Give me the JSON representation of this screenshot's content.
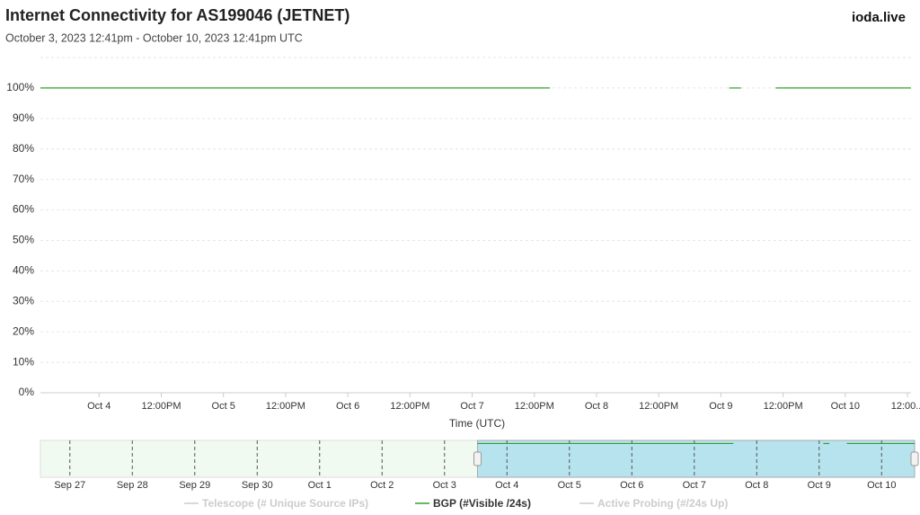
{
  "chart_data": {
    "type": "line",
    "title": "Internet Connectivity for AS199046 (JETNET)",
    "subtitle": "October 3, 2023 12:41pm - October 10, 2023 12:41pm UTC",
    "brand": "ioda.live",
    "x_label": "Time (UTC)",
    "xlim": [
      "2023-10-03T12:41",
      "2023-10-10T12:41"
    ],
    "xticks": [
      {
        "value": "2023-10-04T00:00",
        "label": "Oct 4"
      },
      {
        "value": "2023-10-04T12:00",
        "label": "12:00PM"
      },
      {
        "value": "2023-10-05T00:00",
        "label": "Oct 5"
      },
      {
        "value": "2023-10-05T12:00",
        "label": "12:00PM"
      },
      {
        "value": "2023-10-06T00:00",
        "label": "Oct 6"
      },
      {
        "value": "2023-10-06T12:00",
        "label": "12:00PM"
      },
      {
        "value": "2023-10-07T00:00",
        "label": "Oct 7"
      },
      {
        "value": "2023-10-07T12:00",
        "label": "12:00PM"
      },
      {
        "value": "2023-10-08T00:00",
        "label": "Oct 8"
      },
      {
        "value": "2023-10-08T12:00",
        "label": "12:00PM"
      },
      {
        "value": "2023-10-09T00:00",
        "label": "Oct 9"
      },
      {
        "value": "2023-10-09T12:00",
        "label": "12:00PM"
      },
      {
        "value": "2023-10-10T00:00",
        "label": "Oct 10"
      },
      {
        "value": "2023-10-10T12:00",
        "label": "12:00..."
      }
    ],
    "ylim": [
      0,
      110
    ],
    "yticks": [
      {
        "value": 0,
        "label": "0%"
      },
      {
        "value": 10,
        "label": "10%"
      },
      {
        "value": 20,
        "label": "20%"
      },
      {
        "value": 30,
        "label": "30%"
      },
      {
        "value": 40,
        "label": "40%"
      },
      {
        "value": 50,
        "label": "50%"
      },
      {
        "value": 60,
        "label": "60%"
      },
      {
        "value": 70,
        "label": "70%"
      },
      {
        "value": 80,
        "label": "80%"
      },
      {
        "value": 90,
        "label": "90%"
      },
      {
        "value": 100,
        "label": "100%"
      }
    ],
    "grid": true,
    "series": [
      {
        "name": "Telescope (# Unique Source IPs)",
        "color": "#cccccc",
        "visible": false,
        "x": [],
        "values": []
      },
      {
        "name": "BGP (#Visible /24s)",
        "color": "#33a02c",
        "visible": true,
        "x": [
          "2023-10-03T12:41",
          "2023-10-07T15:00",
          "2023-10-08T00:00",
          "2023-10-09T01:35",
          "2023-10-09T03:53",
          "2023-10-09T06:00",
          "2023-10-09T10:35",
          "2023-10-10T12:41"
        ],
        "values": [
          100,
          100,
          null,
          100,
          100,
          null,
          100,
          100
        ]
      },
      {
        "name": "Active Probing (#/24s Up)",
        "color": "#cccccc",
        "visible": false,
        "x": [],
        "values": []
      }
    ],
    "navigator": {
      "xlim": [
        "2023-09-26T12:41",
        "2023-10-10T12:41"
      ],
      "selection": [
        "2023-10-03T12:41",
        "2023-10-10T12:41"
      ],
      "xticks": [
        {
          "value": "2023-09-27T00:00",
          "label": "Sep 27"
        },
        {
          "value": "2023-09-28T00:00",
          "label": "Sep 28"
        },
        {
          "value": "2023-09-29T00:00",
          "label": "Sep 29"
        },
        {
          "value": "2023-09-30T00:00",
          "label": "Sep 30"
        },
        {
          "value": "2023-10-01T00:00",
          "label": "Oct 1"
        },
        {
          "value": "2023-10-02T00:00",
          "label": "Oct 2"
        },
        {
          "value": "2023-10-03T00:00",
          "label": "Oct 3"
        },
        {
          "value": "2023-10-04T00:00",
          "label": "Oct 4"
        },
        {
          "value": "2023-10-05T00:00",
          "label": "Oct 5"
        },
        {
          "value": "2023-10-06T00:00",
          "label": "Oct 6"
        },
        {
          "value": "2023-10-07T00:00",
          "label": "Oct 7"
        },
        {
          "value": "2023-10-08T00:00",
          "label": "Oct 8"
        },
        {
          "value": "2023-10-09T00:00",
          "label": "Oct 9"
        },
        {
          "value": "2023-10-10T00:00",
          "label": "Oct 10"
        }
      ]
    }
  }
}
